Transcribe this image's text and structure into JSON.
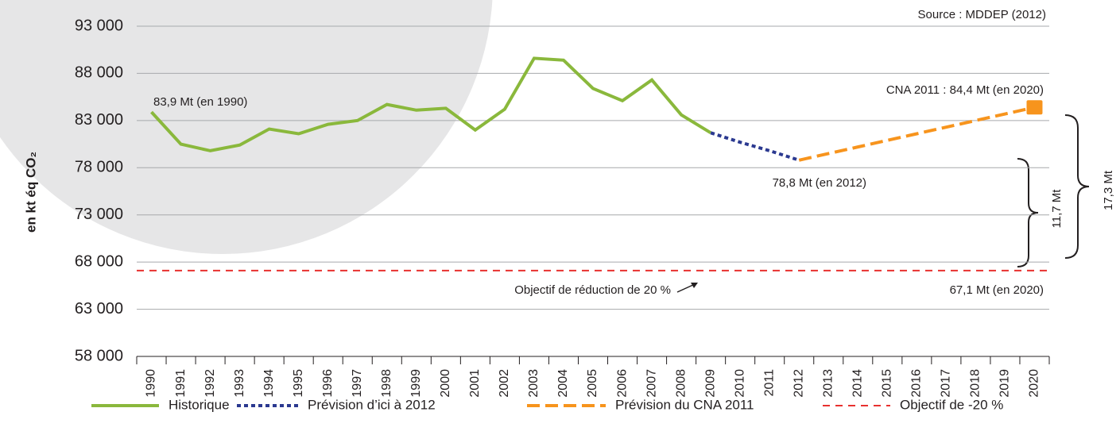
{
  "chart_data": {
    "type": "line",
    "y_label": "en kt éq CO₂",
    "categories": [
      "1990",
      "1991",
      "1992",
      "1993",
      "1994",
      "1995",
      "1996",
      "1997",
      "1998",
      "1999",
      "2000",
      "2001",
      "2002",
      "2003",
      "2004",
      "2005",
      "2006",
      "2007",
      "2008",
      "2009",
      "2010",
      "2011",
      "2012",
      "2013",
      "2014",
      "2015",
      "2016",
      "2017",
      "2018",
      "2019",
      "2020"
    ],
    "series": [
      {
        "name": "Historique",
        "color": "#8ab83c",
        "style": "solid",
        "values": [
          83900,
          80500,
          79800,
          80400,
          82100,
          81600,
          82600,
          83000,
          84700,
          84100,
          84300,
          82000,
          84200,
          89600,
          89400,
          86400,
          85100,
          87300,
          83600,
          81700,
          null,
          null,
          null,
          null,
          null,
          null,
          null,
          null,
          null,
          null,
          null
        ]
      },
      {
        "name": "Prévision d’ici à 2012",
        "color": "#2b3990",
        "style": "dotted",
        "values": [
          null,
          null,
          null,
          null,
          null,
          null,
          null,
          null,
          null,
          null,
          null,
          null,
          null,
          null,
          null,
          null,
          null,
          null,
          null,
          81700,
          80700,
          79800,
          78800,
          null,
          null,
          null,
          null,
          null,
          null,
          null,
          null
        ]
      },
      {
        "name": "Prévision du CNA 2011",
        "color": "#f7941d",
        "style": "dashed",
        "end_marker": "square",
        "values": [
          null,
          null,
          null,
          null,
          null,
          null,
          null,
          null,
          null,
          null,
          null,
          null,
          null,
          null,
          null,
          null,
          null,
          null,
          null,
          null,
          null,
          null,
          78800,
          79500,
          80200,
          80900,
          81600,
          82300,
          83000,
          83700,
          84400
        ]
      }
    ],
    "reference_line": {
      "name": "Objectif de -20 %",
      "value": 67100,
      "color": "#e8312f"
    },
    "ylim": [
      58000,
      93000
    ],
    "yticks": [
      {
        "value": 58000,
        "label": "58 000"
      },
      {
        "value": 63000,
        "label": "63 000"
      },
      {
        "value": 68000,
        "label": "68 000"
      },
      {
        "value": 73000,
        "label": "73 000"
      },
      {
        "value": 78000,
        "label": "78 000"
      },
      {
        "value": 83000,
        "label": "83 000"
      },
      {
        "value": 88000,
        "label": "88 000"
      },
      {
        "value": 93000,
        "label": "93 000"
      }
    ],
    "grid": true,
    "annotations": [
      "Source : MDDEP (2012)",
      "83,9 Mt (en 1990)",
      "CNA 2011 : 84,4 Mt (en 2020)",
      "78,8 Mt (en 2012)",
      "Objectif de réduction de 20 %",
      "67,1 Mt (en 2020)",
      "11,7 Mt",
      "17,3 Mt"
    ]
  }
}
